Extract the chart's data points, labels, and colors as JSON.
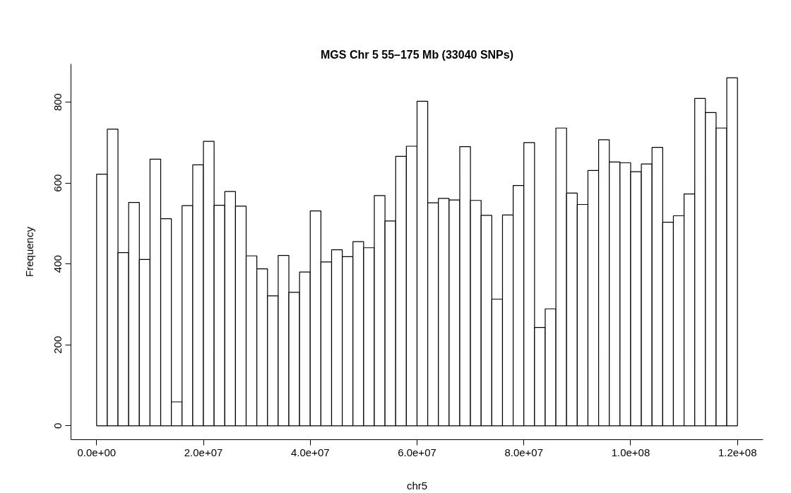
{
  "chart_data": {
    "type": "histogram",
    "title": "MGS Chr 5 55–175 Mb (33040 SNPs)",
    "xlabel": "chr5",
    "ylabel": "Frequency",
    "bins": [
      0,
      2000000,
      4000000,
      6000000,
      8000000,
      10000000,
      12000000,
      14000000,
      16000000,
      18000000,
      20000000,
      22000000,
      24000000,
      26000000,
      28000000,
      30000000,
      32000000,
      34000000,
      36000000,
      38000000,
      40000000,
      42000000,
      44000000,
      46000000,
      48000000,
      50000000,
      52000000,
      54000000,
      56000000,
      58000000,
      60000000,
      62000000,
      64000000,
      66000000,
      68000000,
      70000000,
      72000000,
      74000000,
      76000000,
      78000000,
      80000000,
      82000000,
      84000000,
      86000000,
      88000000,
      90000000,
      92000000,
      94000000,
      96000000,
      98000000,
      100000000,
      102000000,
      104000000,
      106000000,
      108000000,
      110000000,
      112000000,
      114000000,
      116000000,
      118000000,
      120000000
    ],
    "values": [
      622,
      733,
      428,
      552,
      411,
      659,
      512,
      59,
      544,
      645,
      703,
      545,
      579,
      543,
      420,
      388,
      321,
      421,
      330,
      380,
      531,
      405,
      435,
      418,
      455,
      440,
      569,
      506,
      666,
      691,
      802,
      551,
      562,
      558,
      690,
      557,
      520,
      313,
      521,
      594,
      700,
      243,
      289,
      736,
      575,
      547,
      631,
      707,
      652,
      650,
      628,
      647,
      688,
      503,
      519,
      573,
      809,
      774,
      736,
      860
    ],
    "color": "#ffffff",
    "xlim": [
      -4800000,
      124800000
    ],
    "ylim": [
      -34.4,
      894.4
    ],
    "xticks": [
      {
        "value": 0,
        "label": "0.0e+00"
      },
      {
        "value": 20000000,
        "label": "2.0e+07"
      },
      {
        "value": 40000000,
        "label": "4.0e+07"
      },
      {
        "value": 60000000,
        "label": "6.0e+07"
      },
      {
        "value": 80000000,
        "label": "8.0e+07"
      },
      {
        "value": 100000000,
        "label": "1.0e+08"
      },
      {
        "value": 120000000,
        "label": "1.2e+08"
      }
    ],
    "yticks": [
      0,
      200,
      400,
      600,
      800
    ],
    "grid": false
  }
}
